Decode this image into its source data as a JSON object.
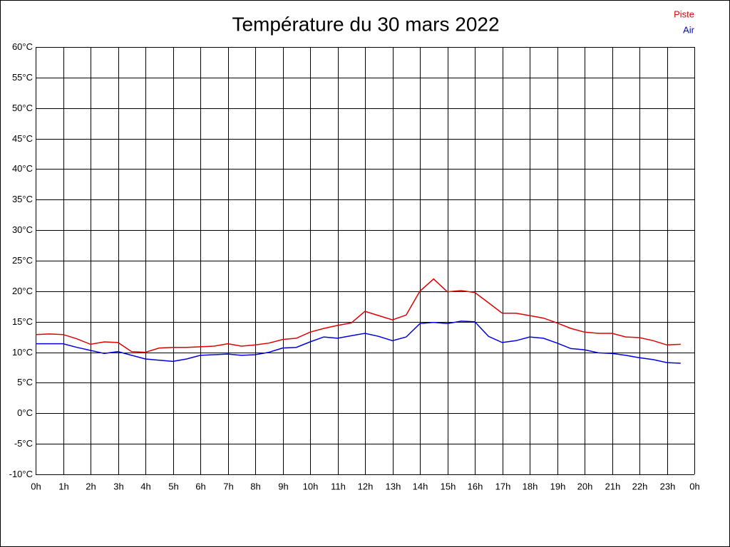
{
  "chart_data": {
    "type": "line",
    "title": "Température du 30 mars 2022",
    "x": [
      0,
      0.5,
      1,
      1.5,
      2,
      2.5,
      3,
      3.5,
      4,
      4.5,
      5,
      5.5,
      6,
      6.5,
      7,
      7.5,
      8,
      8.5,
      9,
      9.5,
      10,
      10.5,
      11,
      11.5,
      12,
      12.5,
      13,
      13.5,
      14,
      14.5,
      15,
      15.5,
      16,
      16.5,
      17,
      17.5,
      18,
      18.5,
      19,
      19.5,
      20,
      20.5,
      21,
      21.5,
      22,
      22.5,
      23,
      23.5
    ],
    "series": [
      {
        "name": "Piste",
        "color": "#e00000",
        "values": [
          12.9,
          13.0,
          12.9,
          12.2,
          11.3,
          11.7,
          11.6,
          10.1,
          10.0,
          10.7,
          10.8,
          10.8,
          10.9,
          11.0,
          11.4,
          11.0,
          11.2,
          11.5,
          12.1,
          12.3,
          13.3,
          13.9,
          14.4,
          14.8,
          16.7,
          16.0,
          15.3,
          16.1,
          20.0,
          22.0,
          19.9,
          20.1,
          19.8,
          18.1,
          16.4,
          16.4,
          16.0,
          15.6,
          14.8,
          13.9,
          13.3,
          13.1,
          13.1,
          12.5,
          12.4,
          11.9,
          11.2,
          11.3
        ]
      },
      {
        "name": "Air",
        "color": "#0000e0",
        "values": [
          11.4,
          11.4,
          11.4,
          10.8,
          10.3,
          9.8,
          10.1,
          9.5,
          8.9,
          8.7,
          8.5,
          8.9,
          9.5,
          9.6,
          9.7,
          9.5,
          9.6,
          10.0,
          10.7,
          10.8,
          11.7,
          12.5,
          12.3,
          12.7,
          13.1,
          12.6,
          11.9,
          12.5,
          14.7,
          14.9,
          14.7,
          15.1,
          15.0,
          12.6,
          11.6,
          11.9,
          12.5,
          12.3,
          11.5,
          10.6,
          10.4,
          9.9,
          9.8,
          9.5,
          9.1,
          8.8,
          8.3,
          8.2
        ]
      }
    ],
    "xlim": [
      0,
      24
    ],
    "xticks": [
      {
        "value": 0,
        "label": "0h"
      },
      {
        "value": 1,
        "label": "1h"
      },
      {
        "value": 2,
        "label": "2h"
      },
      {
        "value": 3,
        "label": "3h"
      },
      {
        "value": 4,
        "label": "4h"
      },
      {
        "value": 5,
        "label": "5h"
      },
      {
        "value": 6,
        "label": "6h"
      },
      {
        "value": 7,
        "label": "7h"
      },
      {
        "value": 8,
        "label": "8h"
      },
      {
        "value": 9,
        "label": "9h"
      },
      {
        "value": 10,
        "label": "10h"
      },
      {
        "value": 11,
        "label": "11h"
      },
      {
        "value": 12,
        "label": "12h"
      },
      {
        "value": 13,
        "label": "13h"
      },
      {
        "value": 14,
        "label": "14h"
      },
      {
        "value": 15,
        "label": "15h"
      },
      {
        "value": 16,
        "label": "16h"
      },
      {
        "value": 17,
        "label": "17h"
      },
      {
        "value": 18,
        "label": "18h"
      },
      {
        "value": 19,
        "label": "19h"
      },
      {
        "value": 20,
        "label": "20h"
      },
      {
        "value": 21,
        "label": "21h"
      },
      {
        "value": 22,
        "label": "22h"
      },
      {
        "value": 23,
        "label": "23h"
      },
      {
        "value": 24,
        "label": "0h"
      }
    ],
    "ylim": [
      -10,
      60
    ],
    "yticks": [
      {
        "value": -10,
        "label": "-10°C"
      },
      {
        "value": -5,
        "label": "-5°C"
      },
      {
        "value": 0,
        "label": "0°C"
      },
      {
        "value": 5,
        "label": "5°C"
      },
      {
        "value": 10,
        "label": "10°C"
      },
      {
        "value": 15,
        "label": "15°C"
      },
      {
        "value": 20,
        "label": "20°C"
      },
      {
        "value": 25,
        "label": "25°C"
      },
      {
        "value": 30,
        "label": "30°C"
      },
      {
        "value": 35,
        "label": "35°C"
      },
      {
        "value": 40,
        "label": "40°C"
      },
      {
        "value": 45,
        "label": "45°C"
      },
      {
        "value": 50,
        "label": "50°C"
      },
      {
        "value": 55,
        "label": "55°C"
      },
      {
        "value": 60,
        "label": "60°C"
      }
    ],
    "grid": true,
    "legend": "top-right"
  }
}
